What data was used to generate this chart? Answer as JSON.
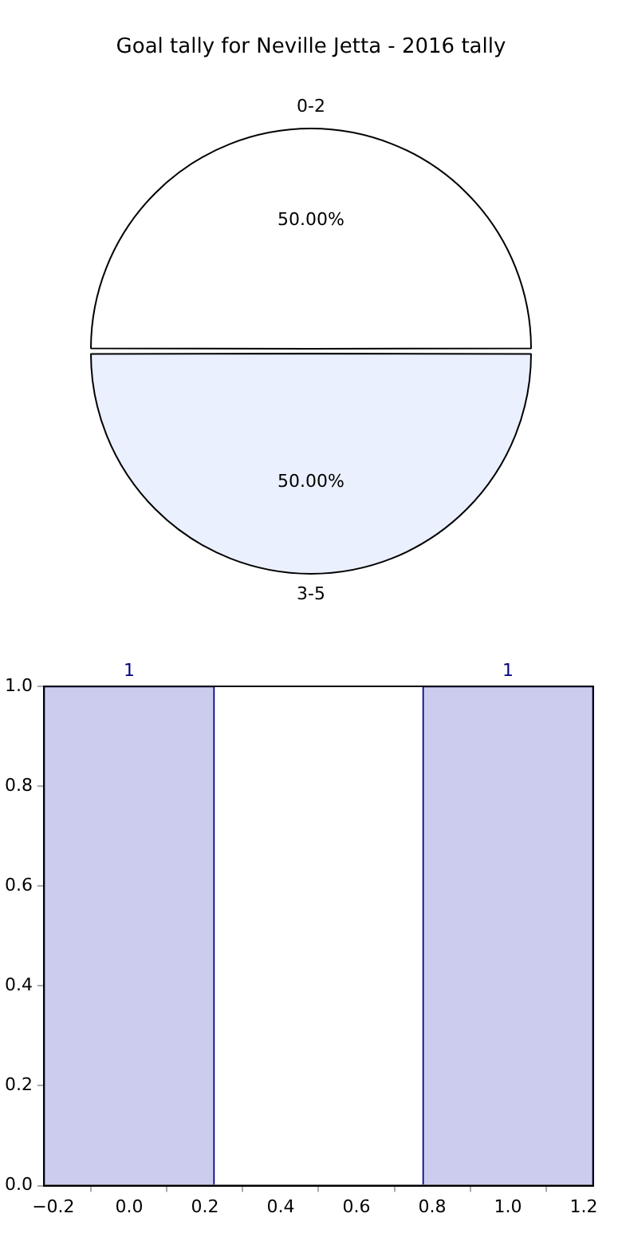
{
  "chart_data": [
    {
      "type": "pie",
      "title": "Goal tally for Neville Jetta - 2016 tally",
      "categories": [
        "0-2",
        "3-5"
      ],
      "values": [
        50,
        50
      ],
      "colors": [
        "#ffffff",
        "#eaf0fd"
      ],
      "value_labels": [
        "50.00%",
        "50.00%"
      ]
    },
    {
      "type": "bar",
      "x": [
        0,
        1
      ],
      "values": [
        1,
        1
      ],
      "color": "#ccccee",
      "data_labels": true,
      "xlim": [
        -0.225,
        1.225
      ],
      "ylim": [
        0,
        1
      ],
      "xticks": [
        {
          "value": -0.2,
          "label": "−0.2"
        },
        {
          "value": 0.0,
          "label": "0.0"
        },
        {
          "value": 0.2,
          "label": "0.2"
        },
        {
          "value": 0.4,
          "label": "0.4"
        },
        {
          "value": 0.6,
          "label": "0.6"
        },
        {
          "value": 0.8,
          "label": "0.8"
        },
        {
          "value": 1.0,
          "label": "1.0"
        },
        {
          "value": 1.2,
          "label": "1.2"
        }
      ],
      "yticks": [
        {
          "value": 0.0,
          "label": "0.0"
        },
        {
          "value": 0.2,
          "label": "0.2"
        },
        {
          "value": 0.4,
          "label": "0.4"
        },
        {
          "value": 0.6,
          "label": "0.6"
        },
        {
          "value": 0.8,
          "label": "0.8"
        },
        {
          "value": 1.0,
          "label": "1.0"
        }
      ]
    }
  ]
}
